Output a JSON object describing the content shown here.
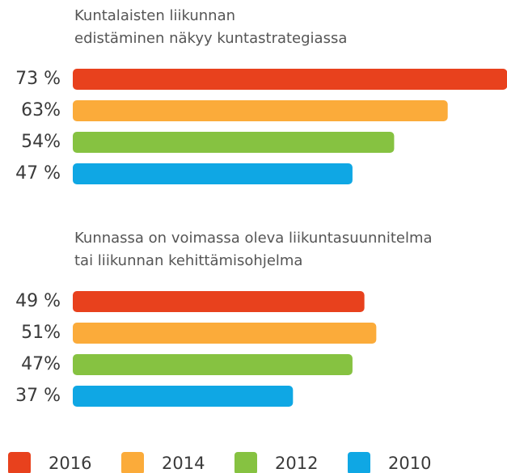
{
  "chart_data": {
    "type": "bar",
    "categories": [
      [
        "Kuntalaisten liikunnan",
        "edistäminen näkyy kuntastrategiassa"
      ],
      [
        "Kunnassa on voimassa oleva liikuntasuunnitelma",
        "tai liikunnan kehittämisohjelma"
      ]
    ],
    "series": [
      {
        "name": "2016",
        "color": "#e8411d",
        "values": [
          73,
          49
        ],
        "value_labels": [
          "73 %",
          "49 %"
        ]
      },
      {
        "name": "2014",
        "color": "#fbab3a",
        "values": [
          63,
          51
        ],
        "value_labels": [
          "63%",
          "51%"
        ]
      },
      {
        "name": "2012",
        "color": "#86c241",
        "values": [
          54,
          47
        ],
        "value_labels": [
          "54%",
          "47%"
        ]
      },
      {
        "name": "2010",
        "color": "#0fa7e4",
        "values": [
          47,
          37
        ],
        "value_labels": [
          "47 %",
          "37 %"
        ]
      }
    ]
  }
}
